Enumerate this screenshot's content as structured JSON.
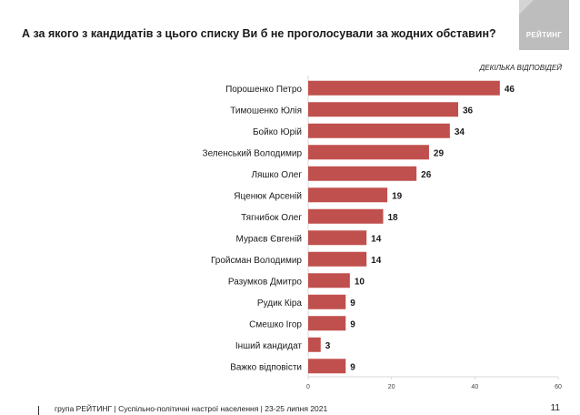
{
  "header": {
    "title": "А за якого з кандидатів з цього списку Ви б не проголосували за жодних обставин?",
    "logo_text": "РЕЙТИНГ"
  },
  "note": "ДЕКІЛЬКА ВІДПОВІДЕЙ",
  "footer": {
    "text": "група РЕЙТИНГ | Суспільно-політичні настрої населення | 23-25 липня 2021",
    "page_number": "11"
  },
  "colors": {
    "bar": "#c0504d",
    "logo_bg": "#bdbdbd",
    "axis": "#d9d9d9"
  },
  "chart_data": {
    "type": "bar",
    "orientation": "horizontal",
    "categories": [
      "Порошенко Петро",
      "Тимошенко Юлія",
      "Бойко Юрій",
      "Зеленський Володимир",
      "Ляшко Олег",
      "Яценюк  Арсеній",
      "Тягнибок Олег",
      "Мураєв Євгеній",
      "Гройсман Володимир",
      "Разумков Дмитро",
      "Рудик Кіра",
      "Смешко Ігор",
      "Інший кандидат",
      "Важко відповісти"
    ],
    "values": [
      46,
      36,
      34,
      29,
      26,
      19,
      18,
      14,
      14,
      10,
      9,
      9,
      3,
      9
    ],
    "xlim": [
      0,
      60
    ],
    "xticks": [
      0,
      20,
      40,
      60
    ],
    "grid": false,
    "data_labels": true
  }
}
